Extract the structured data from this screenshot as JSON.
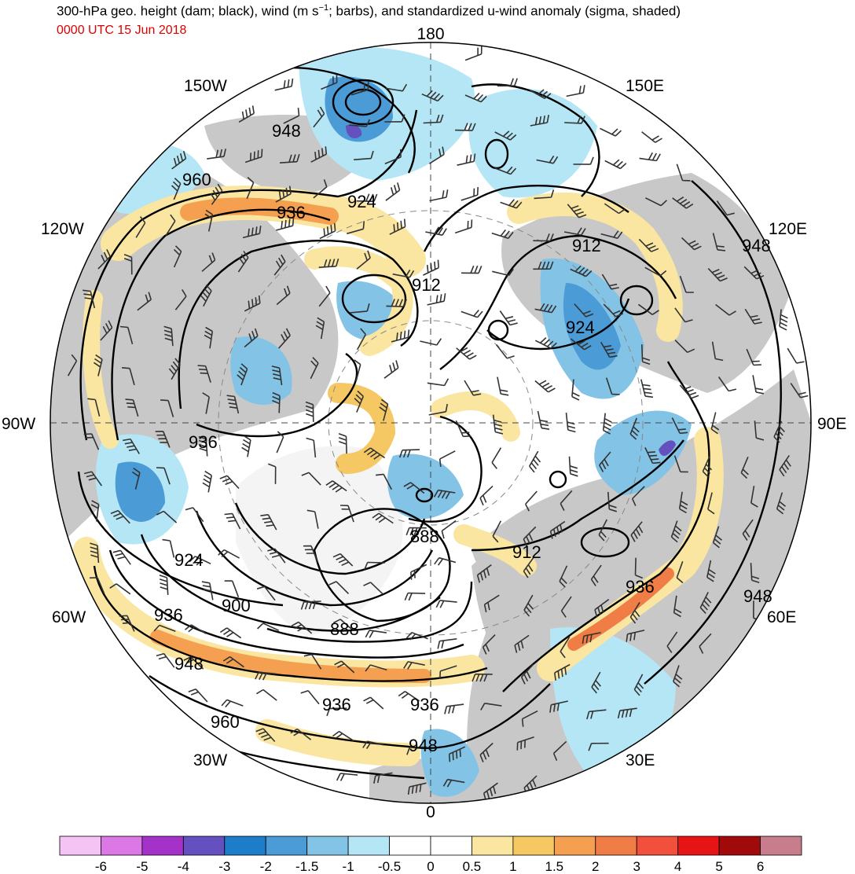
{
  "header": {
    "title_pre": "300-hPa geo. height (dam; black), wind (m s",
    "title_sup": "−1",
    "title_post": "; barbs), and standardized u-wind anomaly (sigma, shaded)",
    "valid_time": "0000 UTC 15 Jun 2018"
  },
  "map": {
    "projection": "north polar stereographic",
    "longitude_labels": [
      "180",
      "150E",
      "120E",
      "90E",
      "60E",
      "30E",
      "0",
      "30W",
      "60W",
      "90W",
      "120W",
      "150W"
    ],
    "contour_labels": [
      "948",
      "960",
      "936",
      "924",
      "912",
      "924",
      "912",
      "948",
      "936",
      "912",
      "888",
      "924",
      "900",
      "936",
      "888",
      "948",
      "936",
      "936",
      "948",
      "960",
      "948"
    ],
    "contour_color": "#000000",
    "land_color": "#c8c8c8",
    "barb_color": "#333333"
  },
  "colorbar": {
    "tick_labels": [
      "-6",
      "-5",
      "-4",
      "-3",
      "-2",
      "-1.5",
      "-1",
      "-0.5",
      "0",
      "0.5",
      "1",
      "1.5",
      "2",
      "3",
      "4",
      "5",
      "6"
    ],
    "colors": [
      "#f5c4f5",
      "#dc78e6",
      "#a532c8",
      "#6450be",
      "#1e7dc8",
      "#4b9bd7",
      "#82c3e6",
      "#b4e6f5",
      "#ffffff",
      "#ffffff",
      "#fae6a0",
      "#f5c864",
      "#f5a050",
      "#f07d46",
      "#f0503c",
      "#e61414",
      "#a00a0a",
      "#c87d8c"
    ]
  }
}
